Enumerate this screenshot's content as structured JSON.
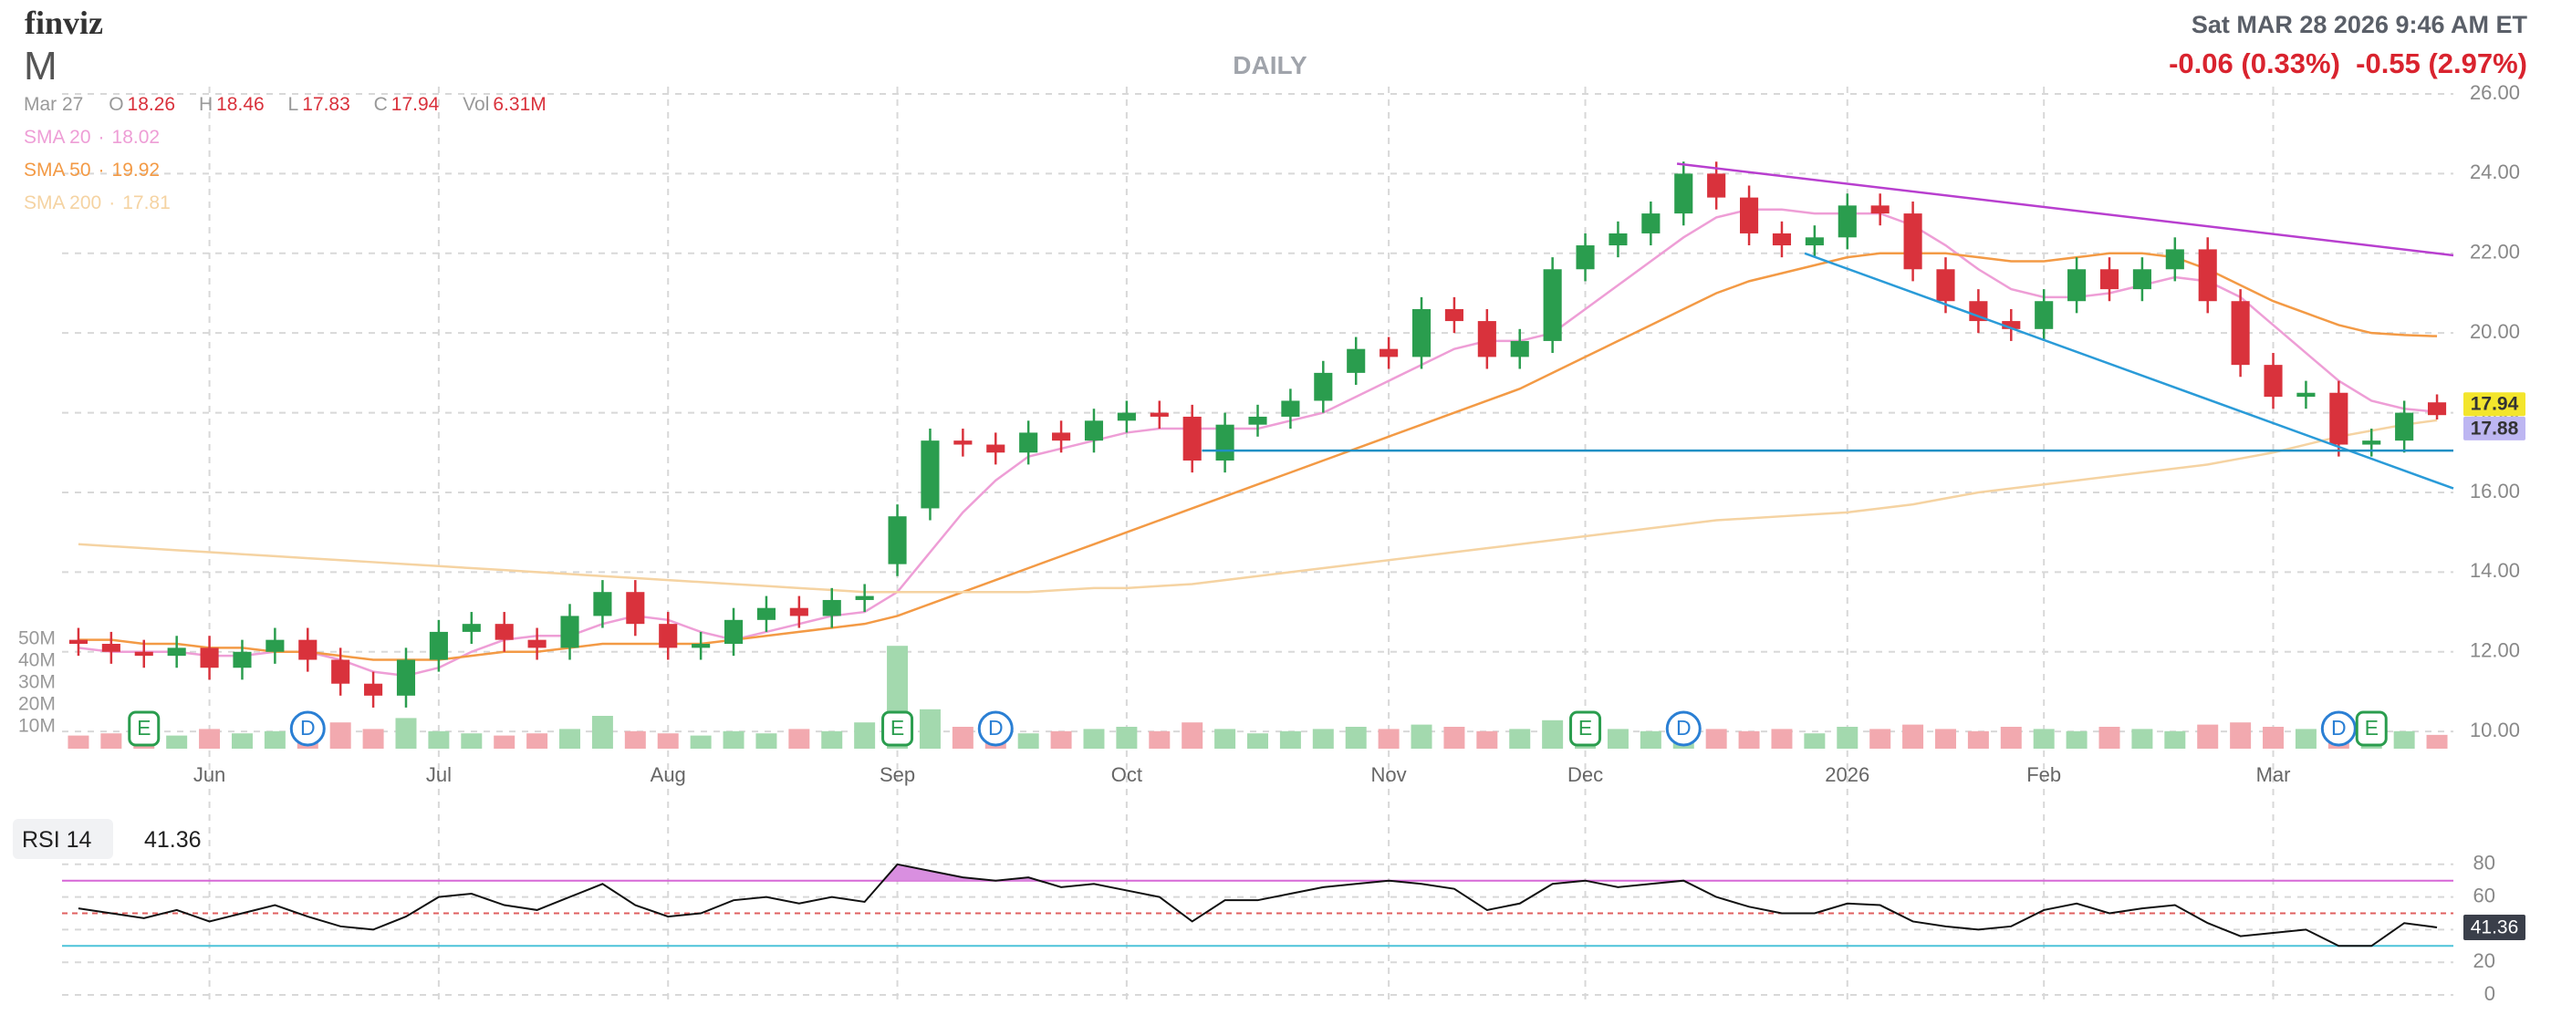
{
  "chart_data": [
    {
      "type": "candlestick",
      "logo": "finviz",
      "title": "M",
      "timeframe": "DAILY",
      "timestamp": "Sat MAR 28 2026 9:46 AM ET",
      "changes": [
        "-0.06 (0.33%)",
        "-0.55 (2.97%)"
      ],
      "quote": {
        "date": "Mar 27",
        "labels": [
          "O",
          "H",
          "L",
          "C",
          "Vol"
        ],
        "volume_label": "6.31M"
      },
      "categories": [
        null,
        null,
        null,
        null,
        "Jun",
        null,
        null,
        null,
        null,
        null,
        null,
        "Jul",
        null,
        null,
        null,
        null,
        null,
        null,
        "Aug",
        null,
        null,
        null,
        null,
        null,
        null,
        "Sep",
        null,
        null,
        null,
        null,
        null,
        null,
        "Oct",
        null,
        null,
        null,
        null,
        null,
        null,
        null,
        "Nov",
        null,
        null,
        null,
        null,
        null,
        "Dec",
        null,
        null,
        null,
        null,
        null,
        null,
        null,
        "2026",
        null,
        null,
        null,
        null,
        null,
        "Feb",
        null,
        null,
        null,
        null,
        null,
        null,
        "Mar",
        null,
        null,
        null,
        null,
        null
      ],
      "open": [
        12.3,
        12.2,
        12.0,
        11.9,
        12.1,
        11.6,
        12.0,
        12.3,
        11.8,
        11.2,
        10.9,
        11.8,
        12.5,
        12.7,
        12.3,
        12.1,
        12.9,
        13.5,
        12.7,
        12.1,
        12.2,
        12.8,
        13.1,
        12.9,
        13.3,
        14.2,
        15.6,
        17.3,
        17.2,
        17.0,
        17.5,
        17.3,
        17.8,
        18.0,
        17.9,
        16.8,
        17.7,
        17.9,
        18.3,
        19.0,
        19.6,
        19.4,
        20.6,
        20.3,
        19.4,
        19.8,
        21.6,
        22.2,
        22.5,
        23.0,
        24.0,
        23.4,
        22.5,
        22.2,
        22.4,
        23.2,
        23.0,
        21.6,
        20.8,
        20.3,
        20.1,
        20.8,
        21.6,
        21.1,
        21.6,
        22.1,
        20.8,
        19.2,
        18.4,
        18.5,
        17.2,
        17.3,
        18.26
      ],
      "high": [
        12.6,
        12.5,
        12.3,
        12.4,
        12.4,
        12.3,
        12.6,
        12.6,
        12.1,
        11.5,
        12.1,
        12.8,
        13.0,
        13.0,
        12.6,
        13.2,
        13.8,
        13.8,
        13.0,
        12.5,
        13.1,
        13.4,
        13.4,
        13.6,
        13.7,
        15.7,
        17.6,
        17.6,
        17.5,
        17.8,
        17.8,
        18.1,
        18.3,
        18.3,
        18.2,
        18.0,
        18.2,
        18.6,
        19.3,
        19.9,
        19.9,
        20.9,
        20.9,
        20.6,
        20.1,
        21.9,
        22.5,
        22.8,
        23.3,
        24.3,
        24.3,
        23.7,
        22.8,
        22.7,
        23.5,
        23.5,
        23.3,
        21.9,
        21.1,
        20.6,
        21.1,
        21.9,
        21.9,
        21.9,
        22.4,
        22.4,
        21.1,
        19.5,
        18.8,
        18.8,
        17.6,
        18.3,
        18.46
      ],
      "low": [
        11.9,
        11.7,
        11.6,
        11.6,
        11.3,
        11.3,
        11.7,
        11.5,
        10.9,
        10.6,
        10.6,
        11.5,
        12.2,
        12.0,
        11.8,
        11.8,
        12.6,
        12.4,
        11.8,
        11.8,
        11.9,
        12.5,
        12.6,
        12.6,
        13.0,
        13.9,
        15.3,
        16.9,
        16.7,
        16.7,
        17.0,
        17.0,
        17.5,
        17.6,
        16.5,
        16.5,
        17.4,
        17.6,
        18.0,
        18.7,
        19.1,
        19.1,
        20.0,
        19.1,
        19.1,
        19.5,
        21.3,
        21.9,
        22.2,
        22.7,
        23.1,
        22.2,
        21.9,
        21.9,
        22.1,
        22.7,
        21.3,
        20.5,
        20.0,
        19.8,
        19.8,
        20.5,
        20.8,
        20.8,
        21.3,
        20.5,
        18.9,
        18.1,
        18.1,
        16.9,
        16.9,
        17.0,
        17.83
      ],
      "close": [
        12.2,
        12.0,
        11.9,
        12.1,
        11.6,
        12.0,
        12.3,
        11.8,
        11.2,
        10.9,
        11.8,
        12.5,
        12.7,
        12.3,
        12.1,
        12.9,
        13.5,
        12.7,
        12.1,
        12.2,
        12.8,
        13.1,
        12.9,
        13.3,
        13.4,
        15.4,
        17.3,
        17.2,
        17.0,
        17.5,
        17.3,
        17.8,
        18.0,
        17.9,
        16.8,
        17.7,
        17.9,
        18.3,
        19.0,
        19.6,
        19.4,
        20.6,
        20.3,
        19.4,
        19.8,
        21.6,
        22.2,
        22.5,
        23.0,
        24.0,
        23.4,
        22.5,
        22.2,
        22.4,
        23.2,
        23.0,
        21.6,
        20.8,
        20.3,
        20.1,
        20.8,
        21.6,
        21.1,
        21.6,
        22.1,
        20.8,
        19.2,
        18.4,
        18.5,
        17.2,
        17.3,
        18.0,
        17.94
      ],
      "volume": [
        6,
        7,
        8,
        6,
        9,
        7,
        8,
        10,
        12,
        9,
        14,
        8,
        7,
        6,
        7,
        9,
        15,
        8,
        7,
        6,
        8,
        7,
        9,
        8,
        12,
        47,
        18,
        10,
        8,
        7,
        8,
        9,
        10,
        8,
        12,
        9,
        7,
        8,
        9,
        10,
        9,
        11,
        10,
        8,
        9,
        13,
        10,
        9,
        8,
        11,
        9,
        8,
        9,
        7,
        10,
        9,
        11,
        9,
        8,
        10,
        9,
        8,
        10,
        9,
        8,
        11,
        12,
        10,
        9,
        14,
        13,
        8,
        6.31
      ],
      "series": [
        {
          "name": "SMA 20",
          "color": "#ee9ed6",
          "values": [
            12.1,
            12.0,
            12.0,
            12.0,
            11.9,
            11.9,
            12.0,
            12.0,
            11.8,
            11.5,
            11.4,
            11.6,
            12.0,
            12.3,
            12.4,
            12.4,
            12.7,
            12.9,
            12.8,
            12.5,
            12.3,
            12.5,
            12.7,
            12.9,
            13.0,
            13.5,
            14.5,
            15.5,
            16.3,
            16.9,
            17.1,
            17.3,
            17.5,
            17.6,
            17.6,
            17.6,
            17.6,
            17.8,
            18.0,
            18.4,
            18.8,
            19.2,
            19.6,
            19.8,
            19.8,
            20.0,
            20.6,
            21.2,
            21.8,
            22.4,
            22.9,
            23.1,
            23.1,
            23.0,
            23.0,
            23.0,
            22.7,
            22.2,
            21.6,
            21.1,
            20.9,
            20.9,
            21.0,
            21.2,
            21.4,
            21.3,
            20.9,
            20.2,
            19.5,
            18.8,
            18.3,
            18.1,
            18.02
          ]
        },
        {
          "name": "SMA 50",
          "color": "#f39a45",
          "values": [
            12.3,
            12.3,
            12.2,
            12.2,
            12.1,
            12.1,
            12.0,
            12.0,
            11.9,
            11.8,
            11.8,
            11.8,
            11.9,
            12.0,
            12.0,
            12.1,
            12.2,
            12.2,
            12.2,
            12.2,
            12.3,
            12.4,
            12.5,
            12.6,
            12.7,
            12.9,
            13.2,
            13.5,
            13.8,
            14.1,
            14.4,
            14.7,
            15.0,
            15.3,
            15.6,
            15.9,
            16.2,
            16.5,
            16.8,
            17.1,
            17.4,
            17.7,
            18.0,
            18.3,
            18.6,
            19.0,
            19.4,
            19.8,
            20.2,
            20.6,
            21.0,
            21.3,
            21.5,
            21.7,
            21.9,
            22.0,
            22.0,
            22.0,
            21.9,
            21.8,
            21.8,
            21.9,
            22.0,
            22.0,
            21.9,
            21.6,
            21.2,
            20.8,
            20.5,
            20.2,
            20.0,
            19.95,
            19.92
          ]
        },
        {
          "name": "SMA 200",
          "color": "#f5d3a2",
          "values": [
            14.7,
            14.65,
            14.6,
            14.55,
            14.5,
            14.45,
            14.4,
            14.35,
            14.3,
            14.25,
            14.2,
            14.15,
            14.1,
            14.05,
            14.0,
            13.95,
            13.9,
            13.85,
            13.8,
            13.75,
            13.7,
            13.65,
            13.6,
            13.55,
            13.5,
            13.5,
            13.5,
            13.5,
            13.5,
            13.5,
            13.55,
            13.6,
            13.6,
            13.65,
            13.7,
            13.8,
            13.9,
            14.0,
            14.1,
            14.2,
            14.3,
            14.4,
            14.5,
            14.6,
            14.7,
            14.8,
            14.9,
            15.0,
            15.1,
            15.2,
            15.3,
            15.35,
            15.4,
            15.45,
            15.5,
            15.6,
            15.7,
            15.85,
            16.0,
            16.1,
            16.2,
            16.3,
            16.4,
            16.5,
            16.6,
            16.7,
            16.85,
            17.0,
            17.2,
            17.4,
            17.55,
            17.7,
            17.81
          ]
        }
      ],
      "up_color": "#2a9d4e",
      "down_color": "#d9323c",
      "volume_up_color": "#a3d9ae",
      "volume_down_color": "#f2a9af",
      "ylim": [
        9.5,
        26
      ],
      "yticks": [
        {
          "value": 10,
          "label": "10.00"
        },
        {
          "value": 12,
          "label": "12.00"
        },
        {
          "value": 14,
          "label": "14.00"
        },
        {
          "value": 16,
          "label": "16.00"
        },
        {
          "value": 18,
          "label": "18.00"
        },
        {
          "value": 20,
          "label": "20.00"
        },
        {
          "value": 22,
          "label": "22.00"
        },
        {
          "value": 24,
          "label": "24.00"
        },
        {
          "value": 26,
          "label": "26.00"
        }
      ],
      "volume_ylim": [
        0,
        50
      ],
      "volume_yticks": [
        {
          "value": 10,
          "label": "10M"
        },
        {
          "value": 20,
          "label": "20M"
        },
        {
          "value": 30,
          "label": "30M"
        },
        {
          "value": 40,
          "label": "40M"
        },
        {
          "value": 50,
          "label": "50M"
        }
      ],
      "grid": true,
      "events": [
        {
          "label": "E",
          "index": 2,
          "color": "#2a9d4e"
        },
        {
          "label": "D",
          "index": 7,
          "color": "#2a7fd4"
        },
        {
          "label": "E",
          "index": 25,
          "color": "#2a9d4e"
        },
        {
          "label": "D",
          "index": 28,
          "color": "#2a7fd4"
        },
        {
          "label": "E",
          "index": 46,
          "color": "#2a9d4e"
        },
        {
          "label": "D",
          "index": 49,
          "color": "#2a7fd4"
        },
        {
          "label": "D",
          "index": 69,
          "color": "#2a7fd4"
        },
        {
          "label": "E",
          "index": 70,
          "color": "#2a9d4e"
        }
      ],
      "trendlines": [
        {
          "color": "#b83fcf",
          "from": [
            48.8,
            24.25
          ],
          "to": [
            72.5,
            21.95
          ]
        },
        {
          "color": "#2a9bd8",
          "from": [
            52.7,
            22.0
          ],
          "to": [
            72.5,
            16.1
          ]
        },
        {
          "color": "#1f8fc4",
          "from": [
            34.3,
            17.05
          ],
          "to": [
            72.5,
            17.05
          ]
        }
      ],
      "last_color": "#f3e52c",
      "price_badges": [
        {
          "value": 17.88,
          "color": "#bdb6f2"
        }
      ]
    },
    {
      "type": "line",
      "label": "RSI 14",
      "color": "#111111",
      "values": [
        53,
        50,
        47,
        52,
        45,
        50,
        55,
        48,
        42,
        40,
        48,
        60,
        62,
        55,
        52,
        60,
        68,
        55,
        48,
        50,
        58,
        60,
        56,
        60,
        57,
        80,
        76,
        72,
        70,
        72,
        66,
        68,
        64,
        60,
        45,
        58,
        58,
        62,
        66,
        68,
        70,
        68,
        65,
        52,
        56,
        68,
        70,
        66,
        68,
        70,
        60,
        54,
        50,
        50,
        56,
        55,
        45,
        42,
        40,
        42,
        52,
        56,
        50,
        53,
        55,
        44,
        36,
        38,
        40,
        30,
        30,
        44,
        41.36
      ],
      "ylim": [
        0,
        100
      ],
      "yticks": [
        0,
        20,
        40,
        60,
        80
      ],
      "levels": [
        {
          "value": 70,
          "color": "#d665d6",
          "dash": false
        },
        {
          "value": 50,
          "color": "#e06060",
          "dash": true
        },
        {
          "value": 30,
          "color": "#4cc3d9",
          "dash": false
        }
      ],
      "fill_color": "#d98fe0",
      "badge_color": "#3a3f4a"
    }
  ]
}
